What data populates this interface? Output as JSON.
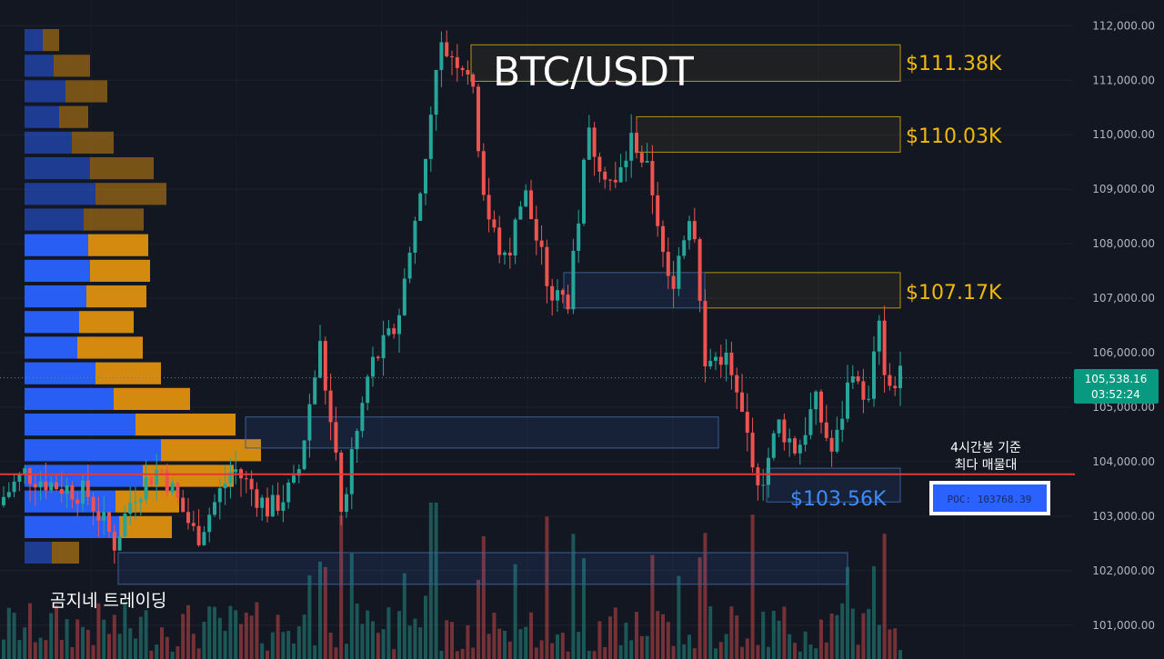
{
  "chart_data": {
    "type": "candlestick",
    "title": "BTC/USDT",
    "y_ticks": [
      "112,000.00",
      "111,000.00",
      "110,000.00",
      "109,000.00",
      "108,000.00",
      "107,000.00",
      "106,000.00",
      "105,000.00",
      "104,000.00",
      "103,000.00",
      "102,000.00",
      "101,000.00"
    ],
    "y_tick_values": [
      112000,
      111000,
      110000,
      109000,
      108000,
      107000,
      106000,
      105000,
      104000,
      103000,
      102000,
      101000
    ],
    "ylim": [
      100500,
      112500
    ],
    "current_price": {
      "value": 105538.16,
      "label": "105,538.16",
      "countdown": "03:52:24"
    },
    "levels": [
      {
        "label": "$111.38K",
        "value": 111380,
        "low": 110980,
        "high": 111650,
        "color": "yellow"
      },
      {
        "label": "$110.03K",
        "value": 110030,
        "low": 109680,
        "high": 110330,
        "color": "yellow"
      },
      {
        "label": "$107.17K",
        "value": 107170,
        "low": 106820,
        "high": 107470,
        "color": "yellow"
      },
      {
        "label": "$103.56K",
        "value": 103560,
        "low": 103260,
        "high": 103880,
        "color": "blue"
      }
    ],
    "poc": {
      "value": 103768.39,
      "label": "POC: 103768.39",
      "note": [
        "4시간봉 기준",
        "최다 매물대"
      ]
    },
    "watermark": "곰지네 트레이딩",
    "zones_blue": [
      {
        "low": 106820,
        "high": 107470
      },
      {
        "low": 104250,
        "high": 104820
      },
      {
        "low": 101750,
        "high": 102330
      }
    ],
    "volume_profile_rows": 20,
    "candles": 170
  },
  "colors": {
    "background": "#131722",
    "up": "#26a69a",
    "down": "#ef5350",
    "level_yellow": "#f0b90b",
    "level_blue": "#3d8bfd",
    "poc_line": "#e53935",
    "vp_blue": "#2962ff",
    "vp_orange": "#f59e0b",
    "price_tag": "#089981"
  }
}
